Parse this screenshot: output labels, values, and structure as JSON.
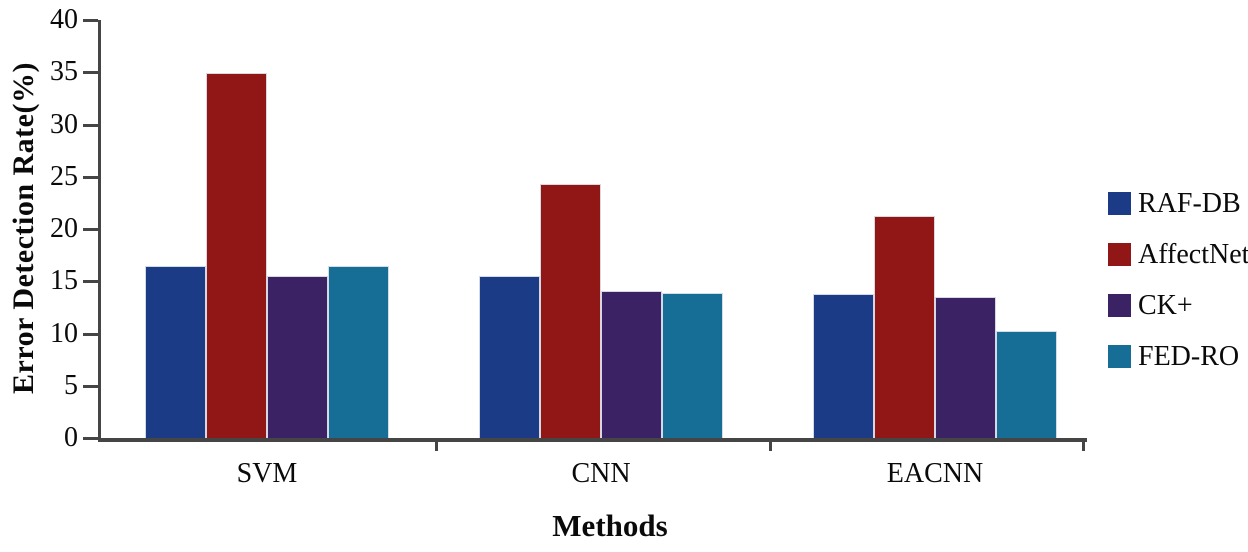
{
  "chart_data": {
    "type": "bar",
    "title": "",
    "xlabel": "Methods",
    "ylabel": "Error Detection Rate(%)",
    "categories": [
      "SVM",
      "CNN",
      "EACNN"
    ],
    "series": [
      {
        "name": "RAF-DB",
        "color": "#1c3b86",
        "values": [
          16.5,
          15.5,
          13.8
        ]
      },
      {
        "name": "AffectNet",
        "color": "#911616",
        "values": [
          34.9,
          24.3,
          21.2
        ]
      },
      {
        "name": "CK+",
        "color": "#3a2264",
        "values": [
          15.5,
          14.1,
          13.5
        ]
      },
      {
        "name": "FED-RO",
        "color": "#166d96",
        "values": [
          16.5,
          13.9,
          10.2
        ]
      }
    ],
    "ylim": [
      0,
      40
    ],
    "yticks": [
      0,
      5,
      10,
      15,
      20,
      25,
      30,
      35,
      40
    ],
    "grid": false,
    "legend_position": "right",
    "axis_color": "#454545"
  }
}
